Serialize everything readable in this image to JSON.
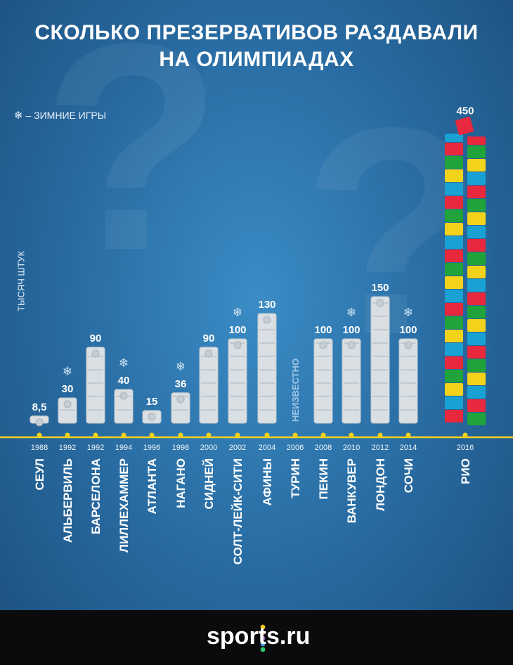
{
  "title_line1": "СКОЛЬКО ПРЕЗЕРВАТИВОВ РАЗДАВАЛИ",
  "title_line2": "НА ОЛИМПИАДАХ",
  "legend": {
    "symbol": "❄",
    "dash": "–",
    "text": "ЗИМНИЕ ИГРЫ"
  },
  "footer": {
    "logo_text": "sports.ru"
  },
  "chart_data": {
    "type": "bar",
    "ylabel": "ТЫСЯЧ ШТУК",
    "ylim": [
      0,
      150
    ],
    "categories": [
      "СЕУЛ",
      "АЛЬБЕРВИЛЬ",
      "БАРСЕЛОНА",
      "ЛИЛЛЕХАММЕР",
      "АТЛАНТА",
      "НАГАНО",
      "СИДНЕЙ",
      "СОЛТ-ЛЕЙК-СИТИ",
      "АФИНЫ",
      "ТУРИН",
      "ПЕКИН",
      "ВАНКУВЕР",
      "ЛОНДОН",
      "СОЧИ",
      "РИО"
    ],
    "years": [
      "1988",
      "1992",
      "1992",
      "1994",
      "1996",
      "1998",
      "2000",
      "2002",
      "2004",
      "2006",
      "2008",
      "2010",
      "2012",
      "2014",
      "2016"
    ],
    "values": [
      8.5,
      30,
      90,
      40,
      15,
      36,
      90,
      100,
      130,
      null,
      100,
      100,
      150,
      100,
      450
    ],
    "value_labels": [
      "8,5",
      "30",
      "90",
      "40",
      "15",
      "36",
      "90",
      "100",
      "130",
      "НЕИЗВЕСТНО",
      "100",
      "100",
      "150",
      "100",
      "450"
    ],
    "winter": [
      false,
      true,
      false,
      true,
      false,
      true,
      false,
      true,
      false,
      true,
      false,
      true,
      false,
      true,
      false
    ],
    "colors": {
      "bar": "#d9dfe3",
      "axis": "#f2d21a",
      "rio": [
        "#e8283c",
        "#1fa33a",
        "#f3d21a",
        "#19a1d4"
      ]
    }
  }
}
